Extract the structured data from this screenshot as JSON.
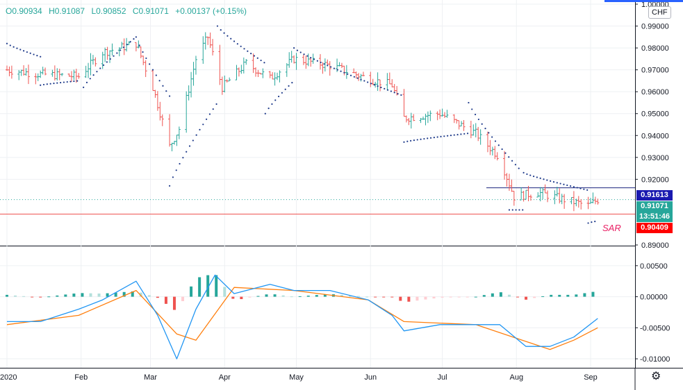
{
  "header": {
    "open": "O0.90934",
    "high": "H0.91087",
    "low": "L0.90852",
    "close": "C0.91071",
    "change": "+0.00137 (+0.15%)"
  },
  "currency_button": "CHF",
  "badges": {
    "line_price": "0.91613",
    "last_price": "0.91071",
    "countdown": "13:51:46",
    "support_price": "0.90409"
  },
  "sar_label": "SAR",
  "colors": {
    "up": "#26a69a",
    "down": "#ef5350",
    "sar": "#1e3a8a",
    "macd": "#2196f3",
    "signal": "#ff7f0e",
    "hist_pos_strong": "#26a69a",
    "hist_pos_weak": "#b2dfdb",
    "hist_neg_strong": "#ef5350",
    "hist_neg_weak": "#ffcdd2",
    "resistance_line": "#1a237e",
    "support_line": "#ef5350",
    "last_badge": "#26a69a",
    "line_badge": "#1a1ab0",
    "support_badge": "#ff0000"
  },
  "chart_data": [
    {
      "type": "ohlc",
      "title": "",
      "ylim": [
        0.89,
        1.0
      ],
      "y_ticks": [
        "1.00000",
        "0.99000",
        "0.98000",
        "0.97000",
        "0.96000",
        "0.95000",
        "0.94000",
        "0.93000",
        "0.92000",
        "0.89000"
      ],
      "x_ticks": [
        "2020",
        "Feb",
        "Mar",
        "Apr",
        "May",
        "Jun",
        "Jul",
        "Aug",
        "Sep"
      ],
      "close_path": [
        [
          "2020-01-01",
          0.97
        ],
        [
          "2020-01-15",
          0.968
        ],
        [
          "2020-01-31",
          0.967
        ],
        [
          "2020-02-10",
          0.978
        ],
        [
          "2020-02-24",
          0.982
        ],
        [
          "2020-03-02",
          0.962
        ],
        [
          "2020-03-09",
          0.935
        ],
        [
          "2020-03-13",
          0.943
        ],
        [
          "2020-03-20",
          0.975
        ],
        [
          "2020-03-25",
          0.985
        ],
        [
          "2020-03-31",
          0.962
        ],
        [
          "2020-04-10",
          0.973
        ],
        [
          "2020-04-20",
          0.966
        ],
        [
          "2020-04-30",
          0.975
        ],
        [
          "2020-05-15",
          0.972
        ],
        [
          "2020-05-31",
          0.966
        ],
        [
          "2020-06-10",
          0.963
        ],
        [
          "2020-06-15",
          0.948
        ],
        [
          "2020-06-30",
          0.95
        ],
        [
          "2020-07-15",
          0.941
        ],
        [
          "2020-07-25",
          0.93
        ],
        [
          "2020-07-31",
          0.912
        ],
        [
          "2020-08-10",
          0.914
        ],
        [
          "2020-08-20",
          0.911
        ],
        [
          "2020-08-31",
          0.908
        ],
        [
          "2020-09-04",
          0.91071
        ]
      ],
      "sar_segments": [
        {
          "side": "above",
          "from": "2020-01-01",
          "to": "2020-01-15",
          "start": 0.982,
          "end": 0.976
        },
        {
          "side": "below",
          "from": "2020-01-15",
          "to": "2020-01-31",
          "start": 0.963,
          "end": 0.965
        },
        {
          "side": "below",
          "from": "2020-02-02",
          "to": "2020-02-24",
          "start": 0.962,
          "end": 0.985
        },
        {
          "side": "above",
          "from": "2020-02-24",
          "to": "2020-03-09",
          "start": 0.985,
          "end": 0.958
        },
        {
          "side": "below",
          "from": "2020-03-09",
          "to": "2020-03-29",
          "start": 0.917,
          "end": 0.955
        },
        {
          "side": "above",
          "from": "2020-03-29",
          "to": "2020-04-18",
          "start": 0.99,
          "end": 0.973
        },
        {
          "side": "below",
          "from": "2020-04-18",
          "to": "2020-04-30",
          "start": 0.95,
          "end": 0.965
        },
        {
          "side": "above",
          "from": "2020-04-30",
          "to": "2020-06-15",
          "start": 0.98,
          "end": 0.958
        },
        {
          "side": "below",
          "from": "2020-06-15",
          "to": "2020-07-12",
          "start": 0.937,
          "end": 0.941
        },
        {
          "side": "above",
          "from": "2020-07-12",
          "to": "2020-08-02",
          "start": 0.955,
          "end": 0.925
        },
        {
          "side": "below",
          "from": "2020-07-29",
          "to": "2020-08-04",
          "start": 0.906,
          "end": 0.906
        },
        {
          "side": "above",
          "from": "2020-08-04",
          "to": "2020-08-31",
          "start": 0.923,
          "end": 0.915
        },
        {
          "side": "below",
          "from": "2020-08-31",
          "to": "2020-09-04",
          "start": 0.9,
          "end": 0.901
        }
      ],
      "resistance": 0.91613,
      "support": 0.90409,
      "last": 0.91071
    },
    {
      "type": "macd",
      "ylim": [
        -0.011,
        0.008
      ],
      "y_ticks": [
        "0.00500",
        "0.00000",
        "-0.00500",
        "-0.01000"
      ],
      "macd_path": [
        [
          "2020-01-01",
          -0.004
        ],
        [
          "2020-01-15",
          -0.004
        ],
        [
          "2020-01-31",
          -0.002
        ],
        [
          "2020-02-10",
          -0.0005
        ],
        [
          "2020-02-24",
          0.0025
        ],
        [
          "2020-03-04",
          -0.003
        ],
        [
          "2020-03-12",
          -0.01
        ],
        [
          "2020-03-20",
          -0.002
        ],
        [
          "2020-03-28",
          0.0035
        ],
        [
          "2020-04-05",
          0.0005
        ],
        [
          "2020-04-20",
          0.002
        ],
        [
          "2020-04-30",
          0.001
        ],
        [
          "2020-05-15",
          0.001
        ],
        [
          "2020-05-31",
          -0.0005
        ],
        [
          "2020-06-10",
          -0.003
        ],
        [
          "2020-06-15",
          -0.0055
        ],
        [
          "2020-06-30",
          -0.0045
        ],
        [
          "2020-07-15",
          -0.0045
        ],
        [
          "2020-07-25",
          -0.0045
        ],
        [
          "2020-08-05",
          -0.008
        ],
        [
          "2020-08-15",
          -0.008
        ],
        [
          "2020-08-25",
          -0.0065
        ],
        [
          "2020-09-04",
          -0.0035
        ]
      ],
      "signal_path": [
        [
          "2020-01-01",
          -0.0045
        ],
        [
          "2020-01-31",
          -0.003
        ],
        [
          "2020-02-24",
          0.001
        ],
        [
          "2020-03-12",
          -0.006
        ],
        [
          "2020-03-20",
          -0.007
        ],
        [
          "2020-04-05",
          0.0015
        ],
        [
          "2020-04-30",
          0.001
        ],
        [
          "2020-05-31",
          -0.0005
        ],
        [
          "2020-06-15",
          -0.004
        ],
        [
          "2020-07-15",
          -0.0045
        ],
        [
          "2020-08-15",
          -0.0085
        ],
        [
          "2020-08-25",
          -0.007
        ],
        [
          "2020-09-04",
          -0.005
        ]
      ]
    }
  ]
}
